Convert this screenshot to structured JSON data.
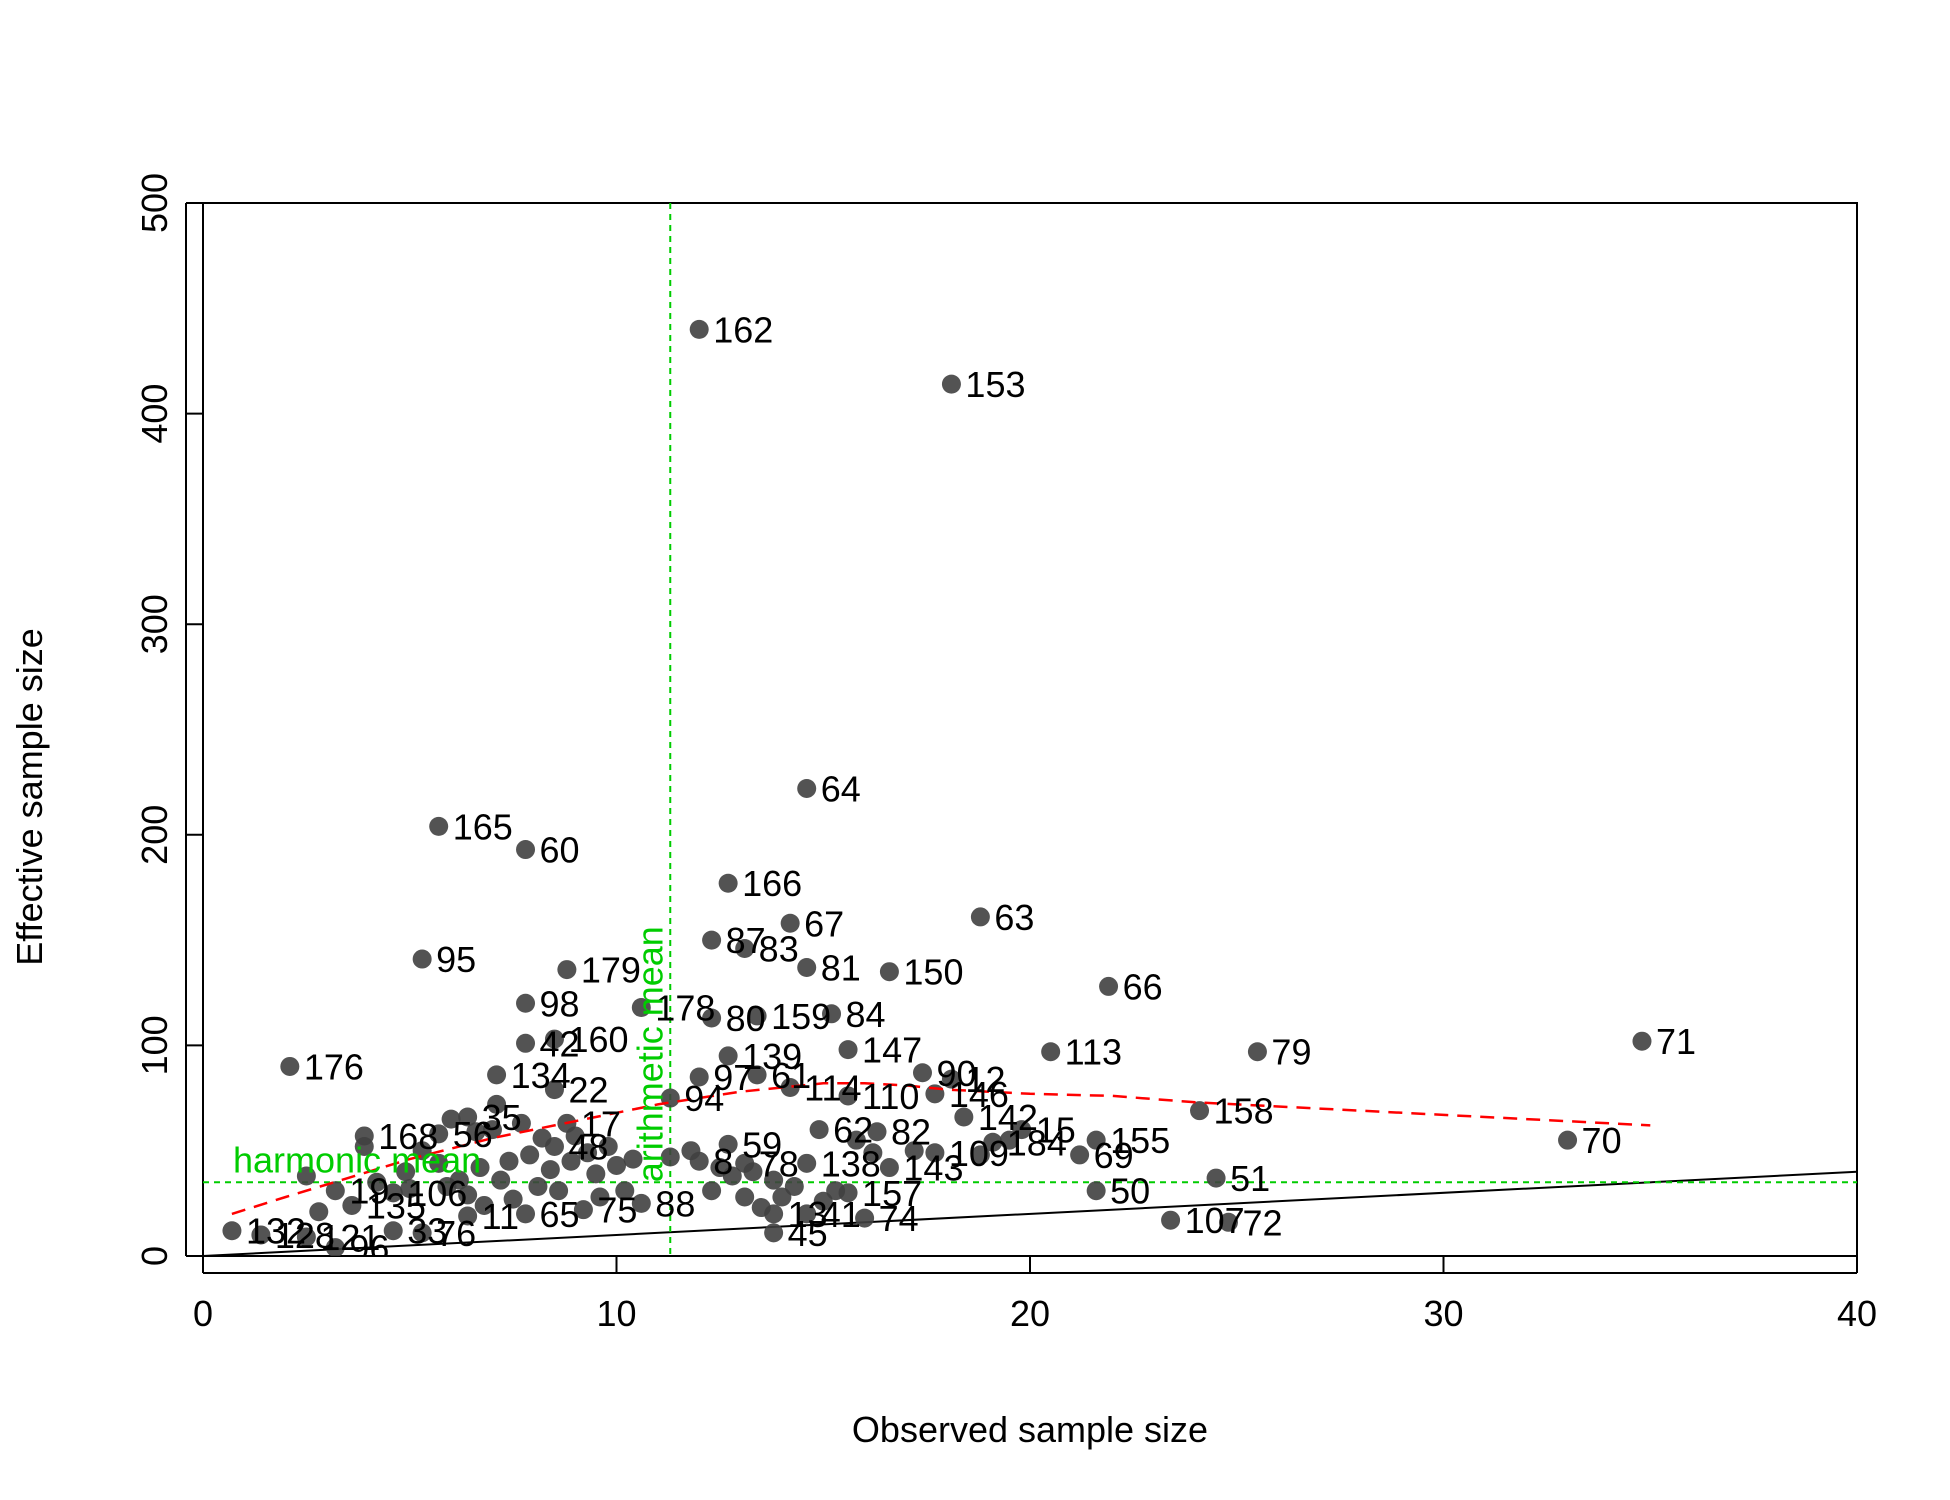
{
  "chart_data": {
    "type": "scatter",
    "xlabel": "Observed sample size",
    "ylabel": "Effective sample size",
    "xlim": [
      0,
      40
    ],
    "ylim": [
      0,
      500
    ],
    "x_ticks": [
      "0",
      "10",
      "20",
      "30",
      "40"
    ],
    "y_ticks": [
      "0",
      "100",
      "200",
      "300",
      "400",
      "500"
    ],
    "grid": false,
    "colors": {
      "points": "#404040",
      "trend": "#ff0000",
      "reference": "#00cc00",
      "identity": "#000000"
    },
    "points": [
      {
        "label": "162",
        "x": 12.0,
        "y": 440
      },
      {
        "label": "153",
        "x": 18.1,
        "y": 414
      },
      {
        "label": "64",
        "x": 14.6,
        "y": 222
      },
      {
        "label": "165",
        "x": 5.7,
        "y": 204
      },
      {
        "label": "60",
        "x": 7.8,
        "y": 193
      },
      {
        "label": "166",
        "x": 12.7,
        "y": 177
      },
      {
        "label": "63",
        "x": 18.8,
        "y": 161
      },
      {
        "label": "67",
        "x": 14.2,
        "y": 158
      },
      {
        "label": "87",
        "x": 12.3,
        "y": 150
      },
      {
        "label": "83",
        "x": 13.1,
        "y": 146
      },
      {
        "label": "95",
        "x": 5.3,
        "y": 141
      },
      {
        "label": "81",
        "x": 14.6,
        "y": 137
      },
      {
        "label": "179",
        "x": 8.8,
        "y": 136
      },
      {
        "label": "150",
        "x": 16.6,
        "y": 135
      },
      {
        "label": "66",
        "x": 21.9,
        "y": 128
      },
      {
        "label": "98",
        "x": 7.8,
        "y": 120
      },
      {
        "label": "178",
        "x": 10.6,
        "y": 118
      },
      {
        "label": "159",
        "x": 13.4,
        "y": 114
      },
      {
        "label": "84",
        "x": 15.2,
        "y": 115
      },
      {
        "label": "80",
        "x": 12.3,
        "y": 113
      },
      {
        "label": "42",
        "x": 7.8,
        "y": 101
      },
      {
        "label": "160",
        "x": 8.5,
        "y": 103
      },
      {
        "label": "71",
        "x": 34.8,
        "y": 102
      },
      {
        "label": "139",
        "x": 12.7,
        "y": 95
      },
      {
        "label": "147",
        "x": 15.6,
        "y": 98
      },
      {
        "label": "113",
        "x": 20.5,
        "y": 97
      },
      {
        "label": "79",
        "x": 25.5,
        "y": 97
      },
      {
        "label": "176",
        "x": 2.1,
        "y": 90
      },
      {
        "label": "134",
        "x": 7.1,
        "y": 86
      },
      {
        "label": "90",
        "x": 17.4,
        "y": 87
      },
      {
        "label": "12",
        "x": 18.1,
        "y": 84
      },
      {
        "label": "97",
        "x": 12.0,
        "y": 85
      },
      {
        "label": "61",
        "x": 13.4,
        "y": 86
      },
      {
        "label": "22",
        "x": 8.5,
        "y": 79
      },
      {
        "label": "114",
        "x": 14.2,
        "y": 80
      },
      {
        "label": "110",
        "x": 15.6,
        "y": 76
      },
      {
        "label": "146",
        "x": 17.7,
        "y": 77
      },
      {
        "label": "94",
        "x": 11.3,
        "y": 75
      },
      {
        "label": "158",
        "x": 24.1,
        "y": 69
      },
      {
        "label": "142",
        "x": 18.4,
        "y": 66
      },
      {
        "label": "168",
        "x": 3.9,
        "y": 57
      },
      {
        "label": "56",
        "x": 5.7,
        "y": 58
      },
      {
        "label": "70",
        "x": 33.0,
        "y": 55
      },
      {
        "label": "155",
        "x": 21.6,
        "y": 55
      },
      {
        "label": "15",
        "x": 19.8,
        "y": 60
      },
      {
        "label": "62",
        "x": 14.9,
        "y": 60
      },
      {
        "label": "82",
        "x": 16.3,
        "y": 59
      },
      {
        "label": "184",
        "x": 19.1,
        "y": 54
      },
      {
        "label": "109",
        "x": 17.7,
        "y": 49
      },
      {
        "label": "69",
        "x": 21.2,
        "y": 48
      },
      {
        "label": "59",
        "x": 12.7,
        "y": 53
      },
      {
        "label": "138",
        "x": 14.6,
        "y": 44
      },
      {
        "label": "143",
        "x": 16.6,
        "y": 42
      },
      {
        "label": "51",
        "x": 24.5,
        "y": 37
      },
      {
        "label": "50",
        "x": 21.6,
        "y": 31
      },
      {
        "label": "157",
        "x": 15.6,
        "y": 30
      },
      {
        "label": "74",
        "x": 16.0,
        "y": 18
      },
      {
        "label": "107",
        "x": 23.4,
        "y": 17
      },
      {
        "label": "72",
        "x": 24.8,
        "y": 16
      },
      {
        "label": "45",
        "x": 13.8,
        "y": 11
      },
      {
        "label": "13",
        "x": 13.8,
        "y": 20
      },
      {
        "label": "41",
        "x": 14.6,
        "y": 20
      },
      {
        "label": "88",
        "x": 10.6,
        "y": 25
      },
      {
        "label": "75",
        "x": 9.2,
        "y": 22
      },
      {
        "label": "11",
        "x": 6.4,
        "y": 19
      },
      {
        "label": "76",
        "x": 5.3,
        "y": 11
      },
      {
        "label": "132",
        "x": 0.7,
        "y": 12
      },
      {
        "label": "128",
        "x": 1.4,
        "y": 10
      },
      {
        "label": "121",
        "x": 2.5,
        "y": 9
      },
      {
        "label": "96",
        "x": 3.2,
        "y": 4
      },
      {
        "label": "33",
        "x": 4.6,
        "y": 12
      },
      {
        "label": "65",
        "x": 7.8,
        "y": 20
      },
      {
        "label": "19",
        "x": 3.2,
        "y": 31
      },
      {
        "label": "135",
        "x": 3.6,
        "y": 24
      },
      {
        "label": "106",
        "x": 4.6,
        "y": 30
      },
      {
        "label": "48",
        "x": 8.5,
        "y": 52
      },
      {
        "label": "17",
        "x": 8.8,
        "y": 63
      },
      {
        "label": "35",
        "x": 6.4,
        "y": 66
      },
      {
        "label": "8",
        "x": 12.0,
        "y": 45
      },
      {
        "label": "78",
        "x": 13.1,
        "y": 44
      }
    ],
    "fill_points": [
      [
        2.5,
        38
      ],
      [
        2.8,
        21
      ],
      [
        3.9,
        52
      ],
      [
        4.2,
        35
      ],
      [
        4.9,
        40
      ],
      [
        5.0,
        32
      ],
      [
        5.3,
        50
      ],
      [
        5.7,
        44
      ],
      [
        5.9,
        33
      ],
      [
        6.0,
        65
      ],
      [
        6.2,
        36
      ],
      [
        6.4,
        29
      ],
      [
        6.6,
        59
      ],
      [
        6.7,
        42
      ],
      [
        6.8,
        24
      ],
      [
        7.0,
        60
      ],
      [
        7.1,
        72
      ],
      [
        7.2,
        36
      ],
      [
        7.4,
        45
      ],
      [
        7.5,
        27
      ],
      [
        7.7,
        63
      ],
      [
        7.9,
        48
      ],
      [
        8.1,
        33
      ],
      [
        8.2,
        56
      ],
      [
        8.4,
        41
      ],
      [
        8.6,
        31
      ],
      [
        8.9,
        45
      ],
      [
        9.0,
        57
      ],
      [
        9.3,
        49
      ],
      [
        9.5,
        39
      ],
      [
        9.6,
        28
      ],
      [
        9.8,
        52
      ],
      [
        10.0,
        43
      ],
      [
        10.2,
        31
      ],
      [
        10.4,
        46
      ],
      [
        11.3,
        47
      ],
      [
        11.8,
        50
      ],
      [
        12.3,
        31
      ],
      [
        12.5,
        42
      ],
      [
        12.8,
        38
      ],
      [
        13.1,
        28
      ],
      [
        13.3,
        40
      ],
      [
        13.5,
        23
      ],
      [
        13.8,
        36
      ],
      [
        14.0,
        28
      ],
      [
        14.3,
        33
      ],
      [
        15.0,
        26
      ],
      [
        15.3,
        31
      ],
      [
        15.8,
        55
      ],
      [
        16.2,
        49
      ],
      [
        17.2,
        50
      ],
      [
        18.8,
        48
      ],
      [
        19.5,
        55
      ]
    ],
    "trend_line": {
      "x": [
        0.7,
        2,
        3,
        4,
        5,
        6,
        7,
        8,
        9,
        10,
        11,
        12,
        13,
        14,
        15,
        16,
        17,
        18,
        19,
        20,
        22,
        24,
        26,
        28,
        30,
        32,
        34,
        35
      ],
      "y": [
        20,
        28,
        34,
        40,
        46,
        51,
        56,
        60,
        64,
        68,
        72,
        75,
        78,
        80,
        82,
        82,
        81,
        79,
        78,
        77,
        76,
        73,
        71,
        69,
        67,
        65,
        63,
        62
      ]
    },
    "identity_line": {
      "x": [
        0,
        40
      ],
      "y": [
        0,
        40
      ]
    },
    "harmonic_mean": {
      "label": "harmonic mean",
      "value": 35
    },
    "arithmetic_mean": {
      "label": "arithmetic mean",
      "value": 11.3
    }
  }
}
